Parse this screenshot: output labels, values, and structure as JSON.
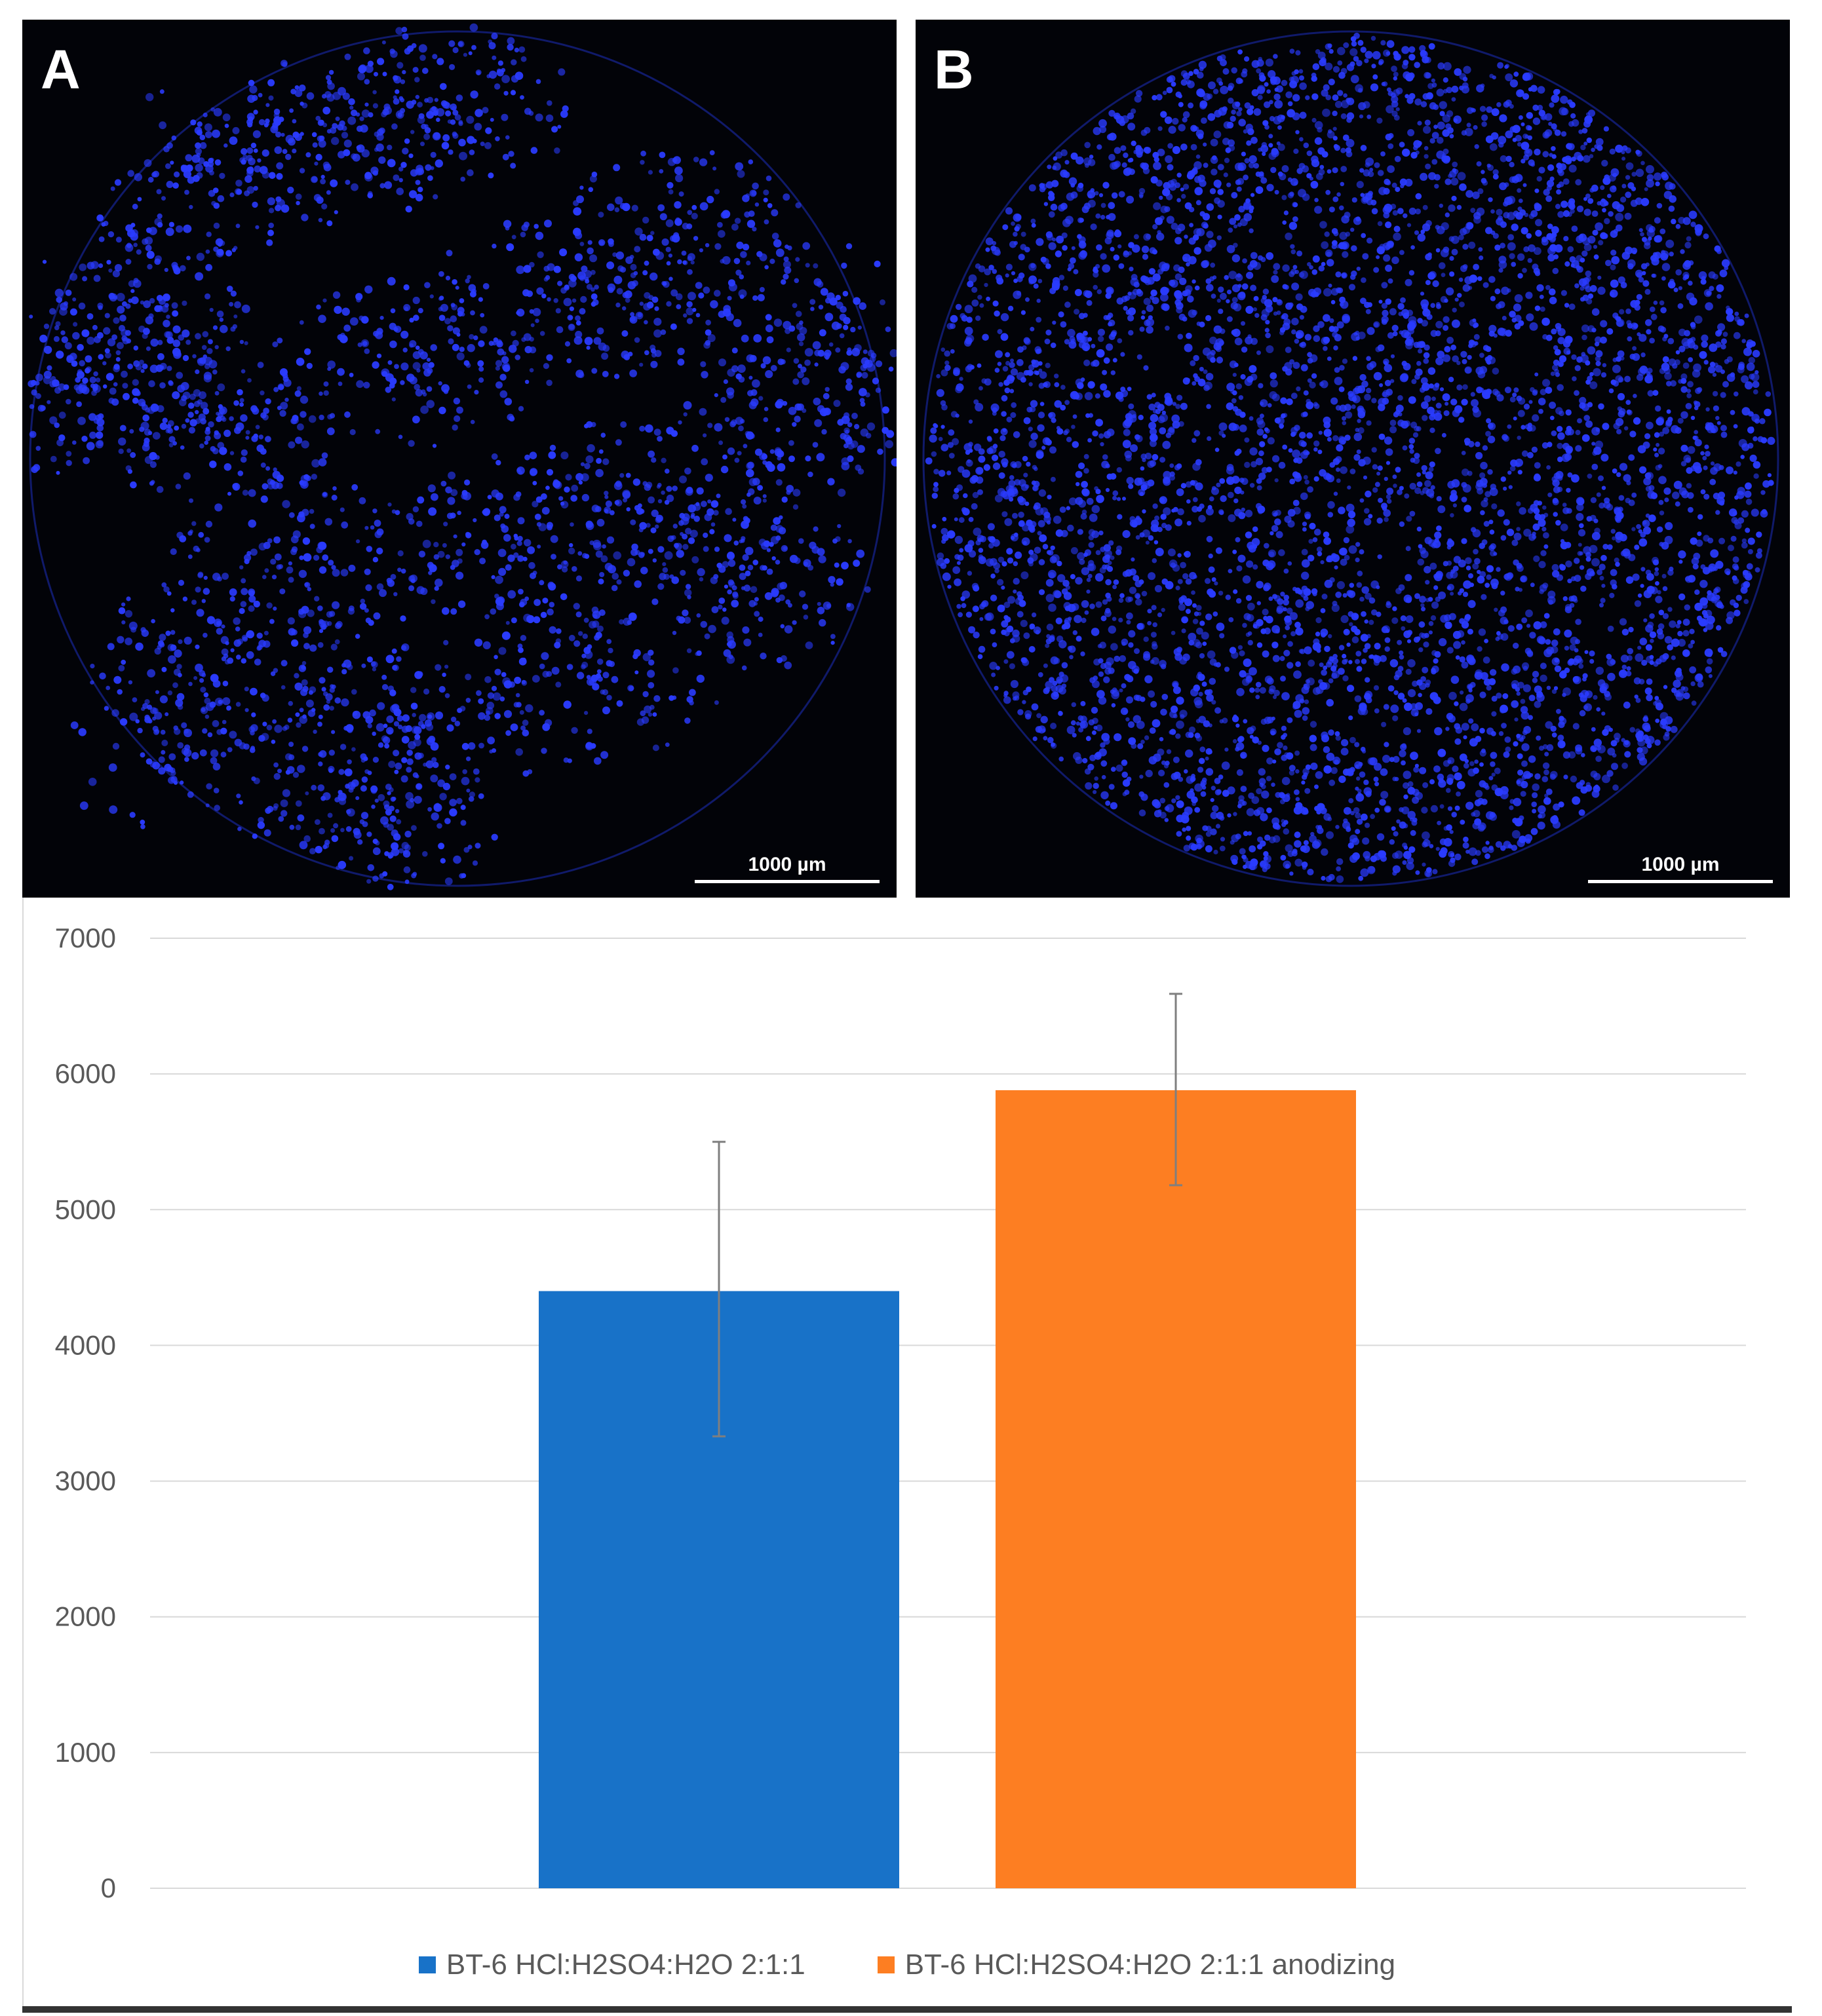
{
  "panels": [
    {
      "label": "A",
      "scale_bar": "1000 µm",
      "cell_density": "sparse-patchy"
    },
    {
      "label": "B",
      "scale_bar": "1000 µm",
      "cell_density": "dense-uniform"
    }
  ],
  "colors": {
    "panel_background": "#020308",
    "nuclei": "#2a3bff",
    "series_1": "#1872C8",
    "series_2": "#FD7E22",
    "gridline": "#d9d9d9",
    "error_bar": "#7f7f7f",
    "text": "#595959"
  },
  "chart_data": {
    "type": "bar",
    "title": "",
    "xlabel": "",
    "ylabel": "",
    "ylim": [
      0,
      7000
    ],
    "yticks": [
      "0",
      "1000",
      "2000",
      "3000",
      "4000",
      "5000",
      "6000",
      "7000"
    ],
    "grid": true,
    "legend_position": "bottom",
    "series": [
      {
        "name": "BT-6 HCl:H2SO4:H2O 2:1:1",
        "value": 4400,
        "error_low": 3330,
        "error_high": 5500,
        "color": "#1872C8"
      },
      {
        "name": "BT-6 HCl:H2SO4:H2O 2:1:1 anodizing",
        "value": 5880,
        "error_low": 5180,
        "error_high": 6590,
        "color": "#FD7E22"
      }
    ]
  }
}
